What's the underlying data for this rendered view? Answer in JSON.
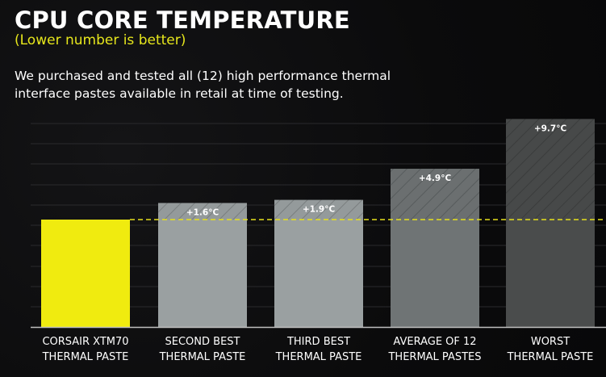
{
  "header": {
    "title": "CPU CORE TEMPERATURE",
    "subtitle": "(Lower number is better)",
    "description": "We purchased and tested all (12) high performance thermal interface pastes available in retail at time of testing."
  },
  "colors": {
    "highlight": "#f0eb0f",
    "bar_light": "#9aa0a1",
    "bar_mid": "#6f7475",
    "bar_dark": "#4a4c4c",
    "reference_line": "#e6e01c"
  },
  "chart_data": {
    "type": "bar",
    "title": "CPU CORE TEMPERATURE",
    "subtitle": "(Lower number is better)",
    "xlabel": "",
    "ylabel": "",
    "grid": true,
    "categories": [
      [
        "CORSAIR XTM70",
        "THERMAL PASTE"
      ],
      [
        "SECOND BEST",
        "THERMAL PASTE"
      ],
      [
        "THIRD BEST",
        "THERMAL PASTE"
      ],
      [
        "AVERAGE OF 12",
        "THERMAL PASTES"
      ],
      [
        "WORST",
        "THERMAL PASTE"
      ]
    ],
    "delta_vs_baseline_c": [
      0,
      1.6,
      1.9,
      4.9,
      9.7
    ],
    "data_labels": [
      "",
      "+1.6°C",
      "+1.9°C",
      "+4.9°C",
      "+9.7°C"
    ],
    "baseline_label": "CORSAIR XTM70",
    "reference_line": "baseline"
  }
}
